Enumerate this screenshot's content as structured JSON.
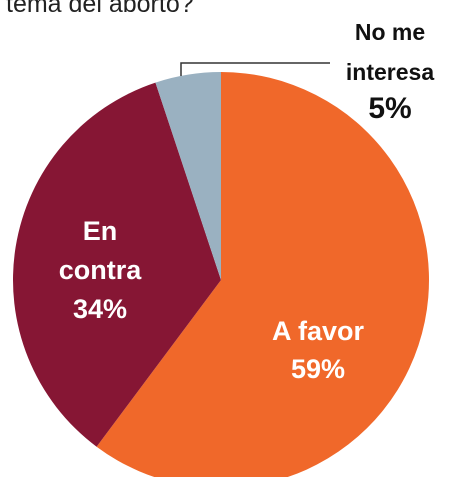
{
  "top_text": "tema del aborto?",
  "chart_data": {
    "type": "pie",
    "slices": [
      {
        "label": "A favor",
        "value": 59,
        "pct_label": "59%",
        "color": "#F0682A",
        "text_color": "#ffffff"
      },
      {
        "label": "En contra",
        "value": 34,
        "pct_label": "34%",
        "color": "#861634",
        "text_color": "#ffffff"
      },
      {
        "label": "No me interesa",
        "value": 5,
        "pct_label": "5%",
        "color": "#9AB1C1",
        "text_color": "#111111"
      }
    ]
  }
}
